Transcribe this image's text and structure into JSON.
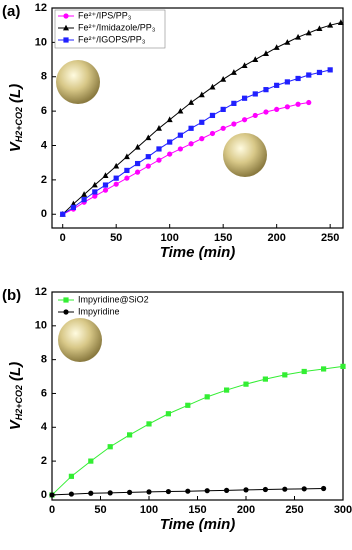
{
  "chart_data": [
    {
      "type": "line",
      "panel_label": "(a)",
      "x_label": "Time (min)",
      "y_label": {
        "main": "V",
        "sub": "H2+CO2",
        "unit": "(L)"
      },
      "xlim": [
        -10,
        262
      ],
      "xticks": [
        0,
        50,
        100,
        150,
        200,
        250
      ],
      "ylim": [
        -0.8,
        12
      ],
      "yticks": [
        0,
        2,
        4,
        6,
        8,
        10,
        12
      ],
      "legend": "upper left",
      "legend_box": true,
      "series": [
        {
          "name": "Fe²⁺/IPS/PP₃",
          "color": "#ff00ff",
          "marker": "circle",
          "x": [
            0,
            10,
            20,
            30,
            40,
            50,
            60,
            70,
            80,
            90,
            100,
            110,
            120,
            130,
            140,
            150,
            160,
            170,
            180,
            190,
            200,
            210,
            220,
            230
          ],
          "values": [
            0,
            0.3,
            0.7,
            1.05,
            1.4,
            1.75,
            2.1,
            2.45,
            2.8,
            3.15,
            3.5,
            3.8,
            4.1,
            4.4,
            4.7,
            5.0,
            5.25,
            5.5,
            5.75,
            5.95,
            6.1,
            6.25,
            6.4,
            6.5
          ]
        },
        {
          "name": "Fe²⁺/Imidazole/PP₃",
          "color": "#000000",
          "marker": "triangle",
          "x": [
            0,
            10,
            20,
            30,
            40,
            50,
            60,
            70,
            80,
            90,
            100,
            110,
            120,
            130,
            140,
            150,
            160,
            170,
            180,
            190,
            200,
            210,
            220,
            230,
            240,
            250,
            260
          ],
          "values": [
            0,
            0.6,
            1.15,
            1.7,
            2.25,
            2.8,
            3.35,
            3.9,
            4.45,
            5.0,
            5.5,
            6.0,
            6.5,
            6.95,
            7.4,
            7.85,
            8.25,
            8.65,
            9.0,
            9.35,
            9.7,
            10.0,
            10.3,
            10.55,
            10.8,
            11.0,
            11.15
          ]
        },
        {
          "name": "Fe²⁺/IGOPS/PP₃",
          "color": "#2020ff",
          "marker": "square",
          "x": [
            0,
            10,
            20,
            30,
            40,
            50,
            60,
            70,
            80,
            90,
            100,
            110,
            120,
            130,
            140,
            150,
            160,
            170,
            180,
            190,
            200,
            210,
            220,
            230,
            240,
            250
          ],
          "values": [
            0,
            0.4,
            0.85,
            1.3,
            1.7,
            2.1,
            2.55,
            2.95,
            3.35,
            3.8,
            4.2,
            4.6,
            5.0,
            5.35,
            5.75,
            6.1,
            6.45,
            6.75,
            7.0,
            7.25,
            7.5,
            7.7,
            7.9,
            8.1,
            8.25,
            8.4
          ]
        }
      ]
    },
    {
      "type": "line",
      "panel_label": "(b)",
      "x_label": "Time (min)",
      "y_label": {
        "main": "V",
        "sub": "H2+CO2",
        "unit": "(L)"
      },
      "xlim": [
        0,
        300
      ],
      "xticks": [
        0,
        50,
        100,
        150,
        200,
        250,
        300
      ],
      "ylim": [
        -0.3,
        12
      ],
      "yticks": [
        0,
        2,
        4,
        6,
        8,
        10,
        12
      ],
      "legend": "upper left",
      "legend_box": false,
      "series": [
        {
          "name": "Impyridine@SiO2",
          "color": "#33ee33",
          "marker": "square",
          "x": [
            0,
            20,
            40,
            60,
            80,
            100,
            120,
            140,
            160,
            180,
            200,
            220,
            240,
            260,
            280,
            300
          ],
          "values": [
            0,
            1.1,
            2.0,
            2.85,
            3.55,
            4.2,
            4.8,
            5.3,
            5.8,
            6.2,
            6.55,
            6.85,
            7.1,
            7.3,
            7.45,
            7.6
          ]
        },
        {
          "name": "Impyridine",
          "color": "#000000",
          "marker": "circle",
          "x": [
            0,
            20,
            40,
            60,
            80,
            100,
            120,
            140,
            160,
            180,
            200,
            220,
            240,
            260,
            280
          ],
          "values": [
            0,
            0.05,
            0.1,
            0.12,
            0.15,
            0.18,
            0.2,
            0.22,
            0.25,
            0.27,
            0.3,
            0.32,
            0.34,
            0.36,
            0.38
          ]
        }
      ]
    }
  ]
}
